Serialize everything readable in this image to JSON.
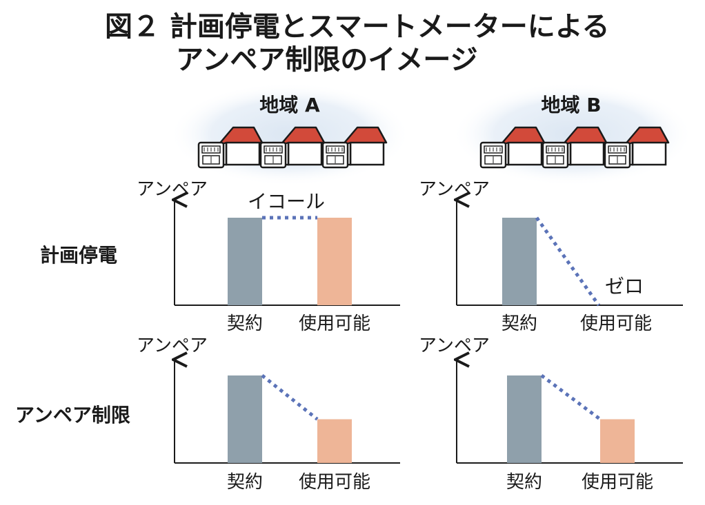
{
  "title": {
    "line1": "図２ 計画停電とスマートメーターによる",
    "line2": "アンペア制限のイメージ"
  },
  "regions": [
    {
      "label": "地域 A",
      "houses": 3
    },
    {
      "label": "地域 B",
      "houses": 3
    }
  ],
  "rows": [
    {
      "label": "計画停電"
    },
    {
      "label": "アンペア制限"
    }
  ],
  "axis_label": "アンペア",
  "colors": {
    "contract_bar": "#8fa0ab",
    "available_bar": "#eeb597",
    "dotted_line": "#5b73b8",
    "roof": "#d24a3a",
    "glow": "#dde7f2"
  },
  "chart_data": [
    {
      "type": "bar",
      "row": "計画停電",
      "region": "地域 A",
      "categories": [
        "契約",
        "使用可能"
      ],
      "values": [
        1.0,
        1.0
      ],
      "ylim": [
        0,
        1.1
      ],
      "ylabel": "アンペア",
      "annotation": "イコール"
    },
    {
      "type": "bar",
      "row": "計画停電",
      "region": "地域 B",
      "categories": [
        "契約",
        "使用可能"
      ],
      "values": [
        1.0,
        0
      ],
      "ylim": [
        0,
        1.1
      ],
      "ylabel": "アンペア",
      "annotation": "ゼロ"
    },
    {
      "type": "bar",
      "row": "アンペア制限",
      "region": "地域 A",
      "categories": [
        "契約",
        "使用可能"
      ],
      "values": [
        1.0,
        0.5
      ],
      "ylim": [
        0,
        1.1
      ],
      "ylabel": "アンペア",
      "annotation": ""
    },
    {
      "type": "bar",
      "row": "アンペア制限",
      "region": "地域 B",
      "categories": [
        "契約",
        "使用可能"
      ],
      "values": [
        1.0,
        0.5
      ],
      "ylim": [
        0,
        1.1
      ],
      "ylabel": "アンペア",
      "annotation": ""
    }
  ]
}
